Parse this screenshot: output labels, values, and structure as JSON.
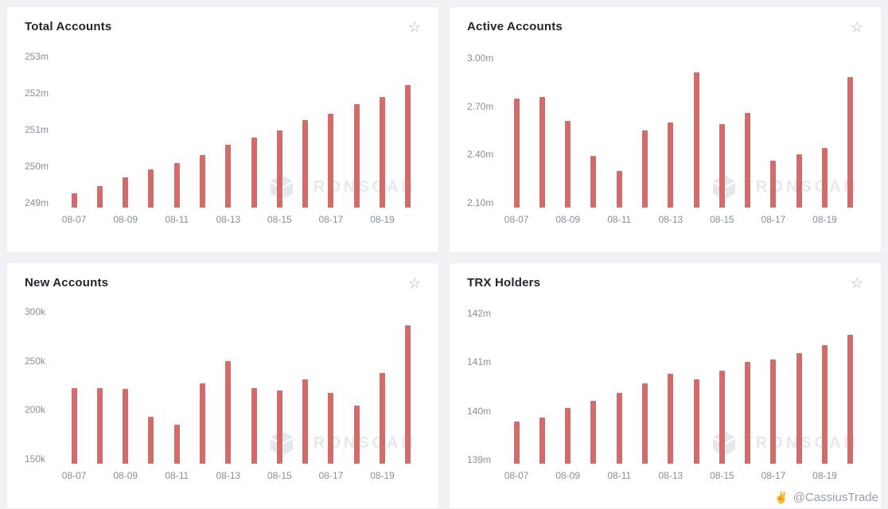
{
  "theme": {
    "bar_color": "#d46b6b",
    "background": "#eff1f4",
    "watermark_color": "#e7e8ec"
  },
  "watermark": {
    "text": "TRONSCAN"
  },
  "footer": {
    "handle": "@CassiusTrade"
  },
  "cards": {
    "favorite_icon_glyph": "☆"
  },
  "chart_data": [
    {
      "type": "bar",
      "title": "Total Accounts",
      "unit": "m",
      "categories": [
        "08-07",
        "08-08",
        "08-09",
        "08-10",
        "08-11",
        "08-12",
        "08-13",
        "08-14",
        "08-15",
        "08-16",
        "08-17",
        "08-18",
        "08-19",
        "08-20"
      ],
      "values": [
        249.26,
        249.46,
        249.7,
        249.91,
        250.09,
        250.3,
        250.59,
        250.78,
        250.98,
        251.26,
        251.43,
        251.7,
        251.89,
        252.22
      ],
      "ylim": [
        248.87,
        253.05
      ],
      "yticks": [
        {
          "value": 249,
          "label": "249m"
        },
        {
          "value": 250,
          "label": "250m"
        },
        {
          "value": 251,
          "label": "251m"
        },
        {
          "value": 252,
          "label": "252m"
        },
        {
          "value": 253,
          "label": "253m"
        }
      ],
      "xtick_every": 2,
      "grid": false,
      "legend": false
    },
    {
      "type": "bar",
      "title": "Active Accounts",
      "unit": "m",
      "categories": [
        "08-07",
        "08-08",
        "08-09",
        "08-10",
        "08-11",
        "08-12",
        "08-13",
        "08-14",
        "08-15",
        "08-16",
        "08-17",
        "08-18",
        "08-19",
        "08-20"
      ],
      "values": [
        2.75,
        2.76,
        2.61,
        2.39,
        2.3,
        2.55,
        2.6,
        2.91,
        2.59,
        2.66,
        2.36,
        2.4,
        2.44,
        2.88
      ],
      "ylim": [
        2.07,
        3.02
      ],
      "yticks": [
        {
          "value": 2.1,
          "label": "2.10m"
        },
        {
          "value": 2.4,
          "label": "2.40m"
        },
        {
          "value": 2.7,
          "label": "2.70m"
        },
        {
          "value": 3.0,
          "label": "3.00m"
        }
      ],
      "xtick_every": 2,
      "grid": false,
      "legend": false
    },
    {
      "type": "bar",
      "title": "New Accounts",
      "unit": "k",
      "categories": [
        "08-07",
        "08-08",
        "08-09",
        "08-10",
        "08-11",
        "08-12",
        "08-13",
        "08-14",
        "08-15",
        "08-16",
        "08-17",
        "08-18",
        "08-19",
        "08-20"
      ],
      "values": [
        222,
        222,
        221,
        193,
        185,
        227,
        250,
        222,
        220,
        231,
        217,
        204,
        238,
        286
      ],
      "ylim": [
        145,
        301
      ],
      "yticks": [
        {
          "value": 150,
          "label": "150k"
        },
        {
          "value": 200,
          "label": "200k"
        },
        {
          "value": 250,
          "label": "250k"
        },
        {
          "value": 300,
          "label": "300k"
        }
      ],
      "xtick_every": 2,
      "grid": false,
      "legend": false
    },
    {
      "type": "bar",
      "title": "TRX Holders",
      "unit": "m",
      "categories": [
        "08-07",
        "08-08",
        "08-09",
        "08-10",
        "08-11",
        "08-12",
        "08-13",
        "08-14",
        "08-15",
        "08-16",
        "08-17",
        "08-18",
        "08-19",
        "08-20"
      ],
      "values": [
        139.79,
        139.87,
        140.06,
        140.2,
        140.37,
        140.56,
        140.76,
        140.65,
        140.82,
        141.0,
        141.05,
        141.18,
        141.35,
        141.56
      ],
      "ylim": [
        138.92,
        142.05
      ],
      "yticks": [
        {
          "value": 139,
          "label": "139m"
        },
        {
          "value": 140,
          "label": "140m"
        },
        {
          "value": 141,
          "label": "141m"
        },
        {
          "value": 142,
          "label": "142m"
        }
      ],
      "xtick_every": 2,
      "grid": false,
      "legend": false
    }
  ]
}
